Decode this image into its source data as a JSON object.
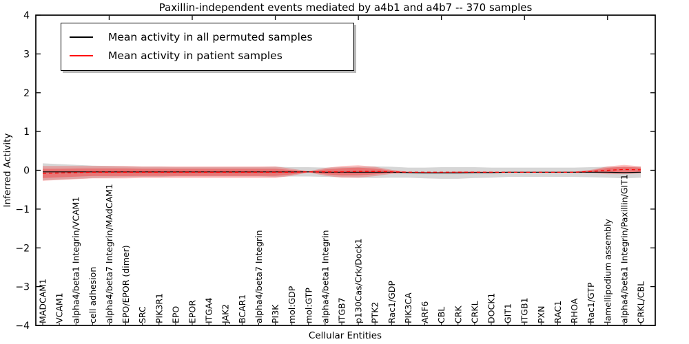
{
  "figure": {
    "title": "Paxillin-independent events mediated by a4b1 and a4b7 -- 370 samples",
    "xlabel": "Cellular Entities",
    "ylabel": "Inferred Activity"
  },
  "legend": {
    "items": [
      {
        "label": "Mean activity in all permuted samples",
        "color": "#000000"
      },
      {
        "label": "Mean activity in patient samples",
        "color": "#ff0000"
      }
    ]
  },
  "chart_data": {
    "type": "line",
    "title": "Paxillin-independent events mediated by a4b1 and a4b7 -- 370 samples",
    "xlabel": "Cellular Entities",
    "ylabel": "Inferred Activity",
    "ylim": [
      -4,
      4
    ],
    "yticks": [
      4,
      3,
      2,
      1,
      0,
      -1,
      -2,
      -3,
      -4
    ],
    "grid": false,
    "legend_position": "upper left",
    "x_tick_label_rotation": 90,
    "categories": [
      "MADCAM1",
      "VCAM1",
      "alpha4/beta1 Integrin/VCAM1",
      "cell adhesion",
      "alpha4/beta7 Integrin/MAdCAM1",
      "EPO/EPOR (dimer)",
      "SRC",
      "PIK3R1",
      "EPO",
      "EPOR",
      "ITGA4",
      "JAK2",
      "BCAR1",
      "alpha4/beta7 Integrin",
      "PI3K",
      "mol:GDP",
      "mol:GTP",
      "alpha4/beta1 Integrin",
      "ITGB7",
      "p130Cas/Crk/Dock1",
      "PTK2",
      "Rac1/GDP",
      "PIK3CA",
      "ARF6",
      "CBL",
      "CRK",
      "CRKL",
      "DOCK1",
      "GIT1",
      "ITGB1",
      "PXN",
      "RAC1",
      "RHOA",
      "Rac1/GTP",
      "lamellipodium assembly",
      "alpha4/beta1 Integrin/Paxillin/GIT1",
      "CRKL/CBL"
    ],
    "series": [
      {
        "name": "Mean activity in all permuted samples",
        "color": "#000000",
        "line_style": "solid",
        "band_color": "rgba(128,128,128,0.32)",
        "values": [
          -0.04,
          -0.04,
          -0.04,
          -0.04,
          -0.04,
          -0.04,
          -0.04,
          -0.04,
          -0.04,
          -0.04,
          -0.04,
          -0.04,
          -0.04,
          -0.04,
          -0.04,
          -0.04,
          -0.04,
          -0.05,
          -0.05,
          -0.05,
          -0.05,
          -0.05,
          -0.06,
          -0.07,
          -0.07,
          -0.07,
          -0.06,
          -0.06,
          -0.05,
          -0.05,
          -0.05,
          -0.05,
          -0.05,
          -0.05,
          -0.05,
          -0.06,
          -0.05
        ],
        "std": [
          0.22,
          0.2,
          0.18,
          0.16,
          0.15,
          0.14,
          0.13,
          0.13,
          0.12,
          0.12,
          0.12,
          0.12,
          0.12,
          0.12,
          0.13,
          0.12,
          0.12,
          0.12,
          0.13,
          0.14,
          0.15,
          0.14,
          0.13,
          0.14,
          0.15,
          0.15,
          0.14,
          0.13,
          0.12,
          0.12,
          0.12,
          0.12,
          0.12,
          0.13,
          0.14,
          0.15,
          0.14
        ]
      },
      {
        "name": "Mean activity in patient samples",
        "color": "#ff0000",
        "line_style": "dashed",
        "band_color": "rgba(255,0,0,0.24)",
        "values": [
          -0.08,
          -0.07,
          -0.06,
          -0.05,
          -0.05,
          -0.05,
          -0.05,
          -0.05,
          -0.05,
          -0.05,
          -0.05,
          -0.05,
          -0.05,
          -0.05,
          -0.05,
          -0.05,
          -0.04,
          -0.04,
          -0.04,
          -0.03,
          -0.03,
          -0.04,
          -0.05,
          -0.05,
          -0.05,
          -0.05,
          -0.05,
          -0.05,
          -0.05,
          -0.05,
          -0.05,
          -0.05,
          -0.05,
          -0.03,
          0.0,
          0.02,
          0.01
        ],
        "std": [
          0.19,
          0.18,
          0.17,
          0.16,
          0.16,
          0.16,
          0.15,
          0.15,
          0.15,
          0.15,
          0.15,
          0.15,
          0.15,
          0.15,
          0.15,
          0.09,
          0.015,
          0.1,
          0.15,
          0.16,
          0.12,
          0.05,
          0.015,
          0.01,
          0.01,
          0.02,
          0.02,
          0.015,
          0.01,
          0.01,
          0.01,
          0.01,
          0.015,
          0.04,
          0.1,
          0.12,
          0.09
        ]
      }
    ]
  }
}
